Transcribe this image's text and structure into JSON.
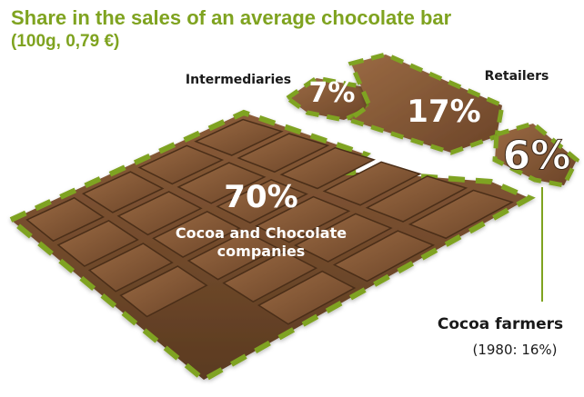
{
  "title": "Share in the sales of an average chocolate bar",
  "subtitle": "(100g, 0,79 €)",
  "colors": {
    "accent_green": "#7fa320",
    "chocolate_dark": "#5a3a20",
    "chocolate_mid": "#7b5132",
    "chocolate_light": "#a0724c",
    "label_dark": "#1a1a1a",
    "label_light": "#ffffff"
  },
  "chart_data": {
    "type": "pie",
    "title": "Share in the sales of an average chocolate bar",
    "subtitle": "(100g, 0,79 €)",
    "unit": "%",
    "segments": [
      {
        "name": "Cocoa and Chocolate companies",
        "value": 70,
        "value_label": "70%"
      },
      {
        "name": "Intermediaries",
        "value": 7,
        "value_label": "7%"
      },
      {
        "name": "Retailers",
        "value": 17,
        "value_label": "17%"
      },
      {
        "name": "Cocoa farmers",
        "value": 6,
        "value_label": "6%",
        "note": "(1980: 16%)"
      }
    ]
  }
}
